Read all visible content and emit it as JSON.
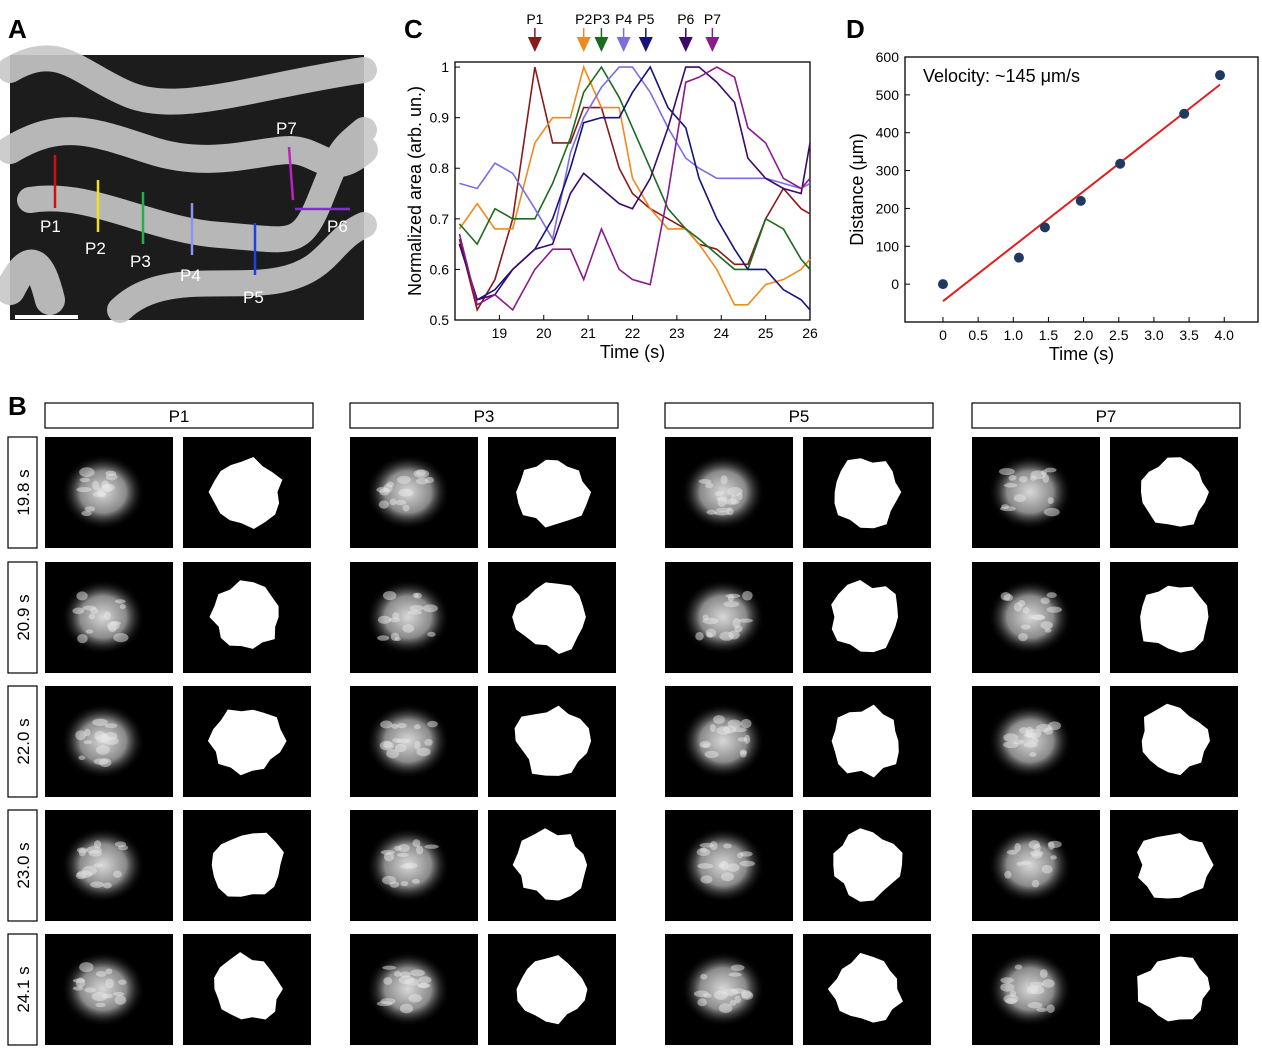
{
  "panels": {
    "a": "A",
    "b": "B",
    "c": "C",
    "d": "D"
  },
  "panel_a": {
    "labels": [
      "P1",
      "P2",
      "P3",
      "P4",
      "P5",
      "P6",
      "P7"
    ]
  },
  "panel_b": {
    "columns": [
      "P1",
      "P3",
      "P5",
      "P7"
    ],
    "rows": [
      "19.8 s",
      "20.9 s",
      "22.0 s",
      "23.0 s",
      "24.1 s"
    ]
  },
  "chart_data": [
    {
      "type": "line",
      "ylabel": "Normalized area (arb. un.)",
      "xlabel": "Time (s)",
      "x": [
        18.1,
        18.5,
        18.9,
        19.3,
        19.8,
        20.2,
        20.6,
        20.9,
        21.3,
        21.7,
        22.0,
        22.4,
        22.8,
        23.2,
        23.5,
        23.9,
        24.3,
        24.6,
        25.0,
        25.4,
        25.8,
        26.0
      ],
      "series": [
        {
          "name": "P1",
          "color": "#8b1a1a",
          "values": [
            0.66,
            0.52,
            0.58,
            0.7,
            1.0,
            0.85,
            0.85,
            0.92,
            0.92,
            0.8,
            0.75,
            0.72,
            0.7,
            0.68,
            0.65,
            0.64,
            0.61,
            0.61,
            0.7,
            0.76,
            0.72,
            0.71
          ]
        },
        {
          "name": "P2",
          "color": "#f08a1c",
          "values": [
            0.68,
            0.73,
            0.68,
            0.68,
            0.85,
            0.9,
            0.9,
            1.0,
            0.92,
            0.92,
            0.78,
            0.72,
            0.68,
            0.68,
            0.65,
            0.6,
            0.53,
            0.53,
            0.57,
            0.58,
            0.6,
            0.62
          ]
        },
        {
          "name": "P3",
          "color": "#1d6b1d",
          "values": [
            0.69,
            0.65,
            0.72,
            0.7,
            0.7,
            0.77,
            0.86,
            0.95,
            1.0,
            0.94,
            0.88,
            0.8,
            0.72,
            0.68,
            0.66,
            0.63,
            0.6,
            0.6,
            0.7,
            0.68,
            0.62,
            0.6
          ]
        },
        {
          "name": "P4",
          "color": "#7b6ee0",
          "values": [
            0.77,
            0.76,
            0.81,
            0.79,
            0.72,
            0.66,
            0.83,
            0.9,
            0.96,
            1.0,
            1.0,
            0.95,
            0.88,
            0.82,
            0.8,
            0.78,
            0.78,
            0.78,
            0.78,
            0.77,
            0.76,
            0.77
          ]
        },
        {
          "name": "P5",
          "color": "#14147a",
          "values": [
            0.65,
            0.54,
            0.56,
            0.6,
            0.64,
            0.7,
            0.8,
            0.89,
            0.9,
            0.9,
            0.95,
            1.0,
            0.92,
            0.88,
            0.78,
            0.7,
            0.64,
            0.6,
            0.6,
            0.56,
            0.54,
            0.52
          ]
        },
        {
          "name": "P6",
          "color": "#3b0a6b",
          "values": [
            0.65,
            0.54,
            0.55,
            0.6,
            0.64,
            0.65,
            0.75,
            0.79,
            0.76,
            0.73,
            0.72,
            0.78,
            0.88,
            1.0,
            1.0,
            0.97,
            0.93,
            0.82,
            0.78,
            0.76,
            0.75,
            0.85
          ]
        },
        {
          "name": "P7",
          "color": "#8b1a8b",
          "values": [
            0.67,
            0.53,
            0.55,
            0.52,
            0.6,
            0.64,
            0.64,
            0.58,
            0.68,
            0.6,
            0.58,
            0.57,
            0.75,
            0.97,
            0.98,
            1.0,
            0.98,
            0.88,
            0.85,
            0.78,
            0.76,
            0.78
          ]
        }
      ],
      "peak_times": [
        19.8,
        20.9,
        21.3,
        21.8,
        22.3,
        23.2,
        23.8
      ],
      "xlim": [
        18,
        26
      ],
      "ylim": [
        0.5,
        1.01
      ],
      "xticks": [
        19,
        20,
        21,
        22,
        23,
        24,
        25,
        26
      ],
      "yticks": [
        0.5,
        0.6,
        0.7,
        0.8,
        0.9,
        1
      ]
    },
    {
      "type": "scatter",
      "annotation": "Velocity: ~145 μm/s",
      "ylabel": "Distance (μm)",
      "xlabel": "Time (s)",
      "x": [
        0,
        1.08,
        1.45,
        1.96,
        2.52,
        3.43,
        3.94
      ],
      "values": [
        0,
        70,
        150,
        220,
        318,
        450,
        552
      ],
      "color": "#1f3a5f",
      "fit": {
        "x": [
          0,
          3.94
        ],
        "values": [
          -45,
          527
        ],
        "color": "#e02020"
      },
      "xlim": [
        -0.54,
        4.48
      ],
      "ylim": [
        -100,
        600
      ],
      "xticks": [
        0,
        0.5,
        {
          "value": 1,
          "label": "1.0"
        },
        1.5,
        {
          "value": 2,
          "label": "2.0"
        },
        2.5,
        {
          "value": 3,
          "label": "3.0"
        },
        3.5,
        {
          "value": 4,
          "label": "4.0"
        }
      ],
      "yticks": [
        0,
        100,
        200,
        300,
        400,
        500,
        600
      ]
    }
  ]
}
